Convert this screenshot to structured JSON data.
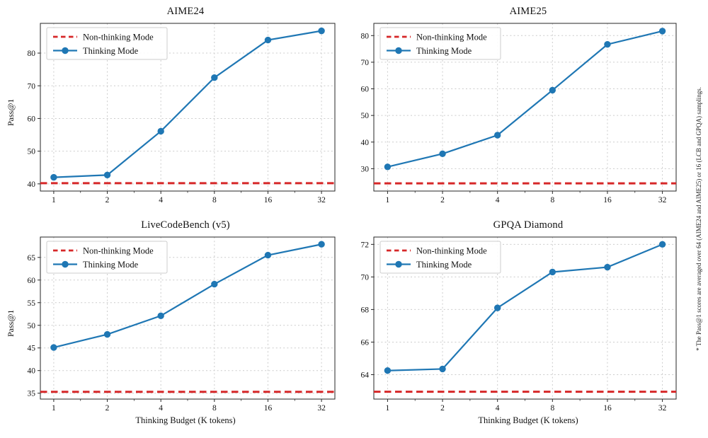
{
  "page": {
    "footnote": "* The Pass@1 scores are averaged over 64 (AIME24 and AIME25) or 16 (LCB and GPQA) samplings."
  },
  "style": {
    "thinking_color": "#1f77b4",
    "non_thinking_color": "#d62728",
    "grid_color": "#cccccc",
    "spine_color": "#262626",
    "legend_border_color": "#cccccc",
    "background": "#ffffff"
  },
  "legend": {
    "non_thinking": "Non-thinking Mode",
    "thinking": "Thinking Mode"
  },
  "chart_data": [
    {
      "type": "line",
      "title": "AIME24",
      "xlabel": "",
      "ylabel": "Pass@1",
      "x_scale": "log2",
      "x": [
        1,
        2,
        4,
        8,
        16,
        32
      ],
      "series": [
        {
          "name": "Thinking Mode",
          "values": [
            42.0,
            42.7,
            56.1,
            72.5,
            84.0,
            86.8
          ]
        }
      ],
      "baseline": {
        "name": "Non-thinking Mode",
        "value": 40.2
      },
      "yticks": [
        40,
        50,
        60,
        70,
        80
      ],
      "ylim": [
        37.8,
        89.1
      ],
      "xlim_log2": [
        -0.25,
        5.25
      ],
      "grid": true,
      "legend_position": "upper left"
    },
    {
      "type": "line",
      "title": "AIME25",
      "xlabel": "",
      "ylabel": "",
      "x_scale": "log2",
      "x": [
        1,
        2,
        4,
        8,
        16,
        32
      ],
      "series": [
        {
          "name": "Thinking Mode",
          "values": [
            30.7,
            35.6,
            42.6,
            59.5,
            76.7,
            81.7
          ]
        }
      ],
      "baseline": {
        "name": "Non-thinking Mode",
        "value": 24.5
      },
      "yticks": [
        30,
        40,
        50,
        60,
        70,
        80
      ],
      "ylim": [
        21.6,
        84.6
      ],
      "xlim_log2": [
        -0.25,
        5.25
      ],
      "grid": true,
      "legend_position": "upper left"
    },
    {
      "type": "line",
      "title": "LiveCodeBench (v5)",
      "xlabel": "Thinking Budget (K tokens)",
      "ylabel": "Pass@1",
      "x_scale": "log2",
      "x": [
        1,
        2,
        4,
        8,
        16,
        32
      ],
      "series": [
        {
          "name": "Thinking Mode",
          "values": [
            45.1,
            48.0,
            52.1,
            59.1,
            65.5,
            67.9
          ]
        }
      ],
      "baseline": {
        "name": "Non-thinking Mode",
        "value": 35.3
      },
      "yticks": [
        35,
        40,
        45,
        50,
        55,
        60,
        65
      ],
      "ylim": [
        33.7,
        69.5
      ],
      "xlim_log2": [
        -0.25,
        5.25
      ],
      "grid": true,
      "legend_position": "upper left"
    },
    {
      "type": "line",
      "title": "GPQA Diamond",
      "xlabel": "Thinking Budget (K tokens)",
      "ylabel": "",
      "x_scale": "log2",
      "x": [
        1,
        2,
        4,
        8,
        16,
        32
      ],
      "series": [
        {
          "name": "Thinking Mode",
          "values": [
            64.25,
            64.35,
            68.1,
            70.3,
            70.6,
            72.0
          ]
        }
      ],
      "baseline": {
        "name": "Non-thinking Mode",
        "value": 62.95
      },
      "yticks": [
        64,
        66,
        68,
        70,
        72
      ],
      "ylim": [
        62.5,
        72.45
      ],
      "xlim_log2": [
        -0.25,
        5.25
      ],
      "grid": true,
      "legend_position": "upper left"
    }
  ]
}
